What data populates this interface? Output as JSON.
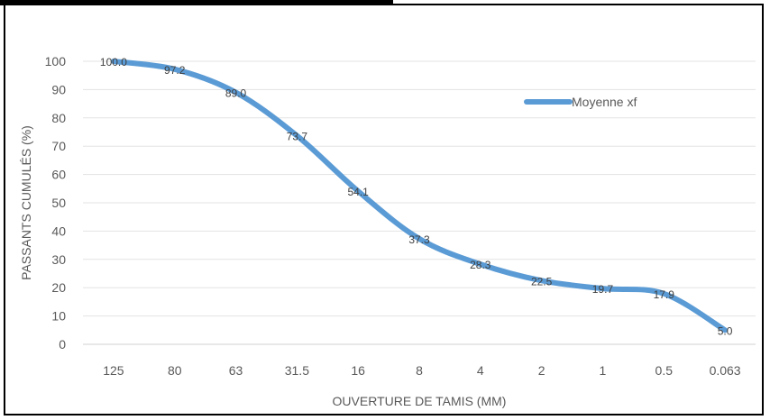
{
  "chart_data": {
    "type": "line",
    "categories": [
      "125",
      "80",
      "63",
      "31.5",
      "16",
      "8",
      "4",
      "2",
      "1",
      "0.5",
      "0.063"
    ],
    "series": [
      {
        "name": "Moyenne xf",
        "values": [
          100.0,
          97.2,
          89.0,
          73.7,
          54.1,
          37.3,
          28.3,
          22.5,
          19.7,
          17.9,
          5.0
        ],
        "color": "#5B9BD5"
      }
    ],
    "data_labels": [
      "100.0",
      "97.2",
      "89.0",
      "73.7",
      "54.1",
      "37.3",
      "28.3",
      "22.5",
      "19.7",
      "17.9",
      "5.0"
    ],
    "xlabel": "OUVERTURE DE TAMIS (MM)",
    "ylabel": "PASSANTS CUMULÉS (%)",
    "ylim": [
      0,
      100
    ],
    "yticks": [
      "0",
      "10",
      "20",
      "30",
      "40",
      "50",
      "60",
      "70",
      "80",
      "90",
      "100"
    ],
    "grid": true,
    "legend_position": "top-right",
    "smooth": true
  }
}
